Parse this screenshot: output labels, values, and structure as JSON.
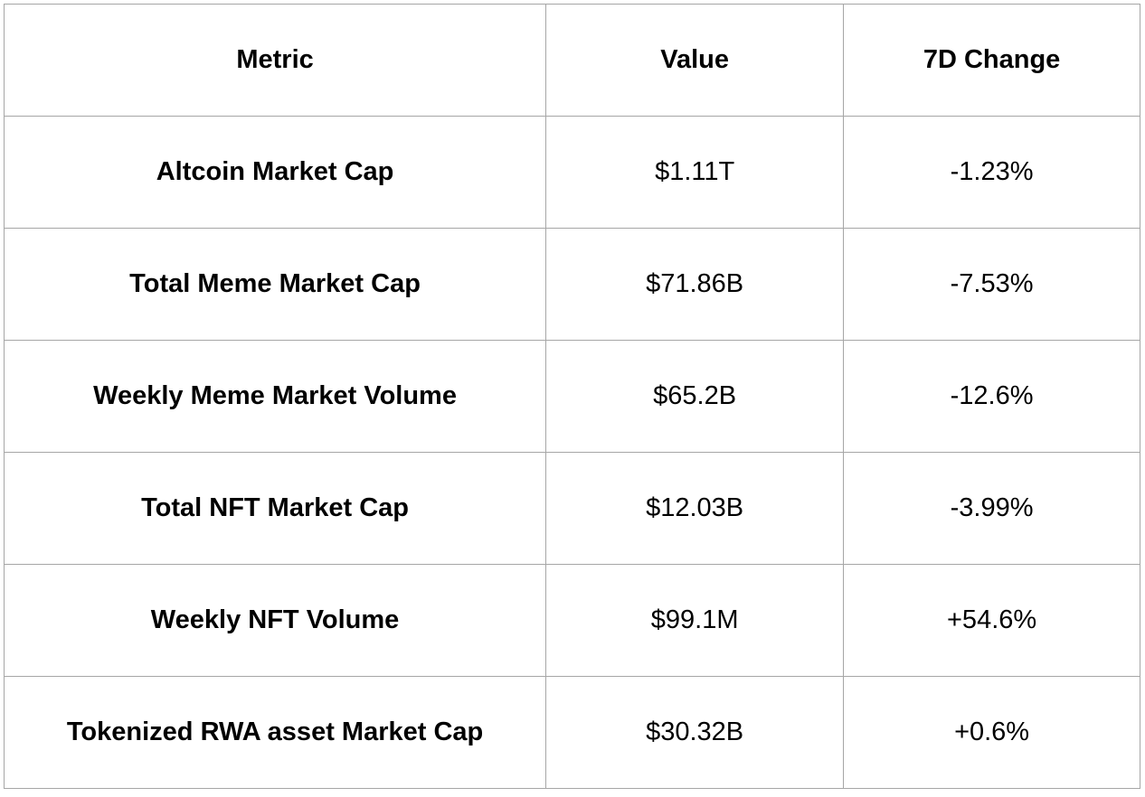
{
  "table": {
    "columns": [
      {
        "label": "Metric"
      },
      {
        "label": "Value"
      },
      {
        "label": "7D Change"
      }
    ],
    "rows": [
      {
        "metric": "Altcoin Market Cap",
        "value": "$1.11T",
        "change": "-1.23%"
      },
      {
        "metric": "Total Meme Market Cap",
        "value": "$71.86B",
        "change": "-7.53%"
      },
      {
        "metric": "Weekly Meme Market Volume",
        "value": "$65.2B",
        "change": "-12.6%"
      },
      {
        "metric": "Total NFT Market Cap",
        "value": "$12.03B",
        "change": "-3.99%"
      },
      {
        "metric": "Weekly NFT Volume",
        "value": "$99.1M",
        "change": "+54.6%"
      },
      {
        "metric": "Tokenized RWA asset Market Cap",
        "value": "$30.32B",
        "change": "+0.6%"
      }
    ],
    "colors": {
      "border": "#a6a6a6",
      "text": "#000000",
      "background": "#ffffff"
    }
  }
}
